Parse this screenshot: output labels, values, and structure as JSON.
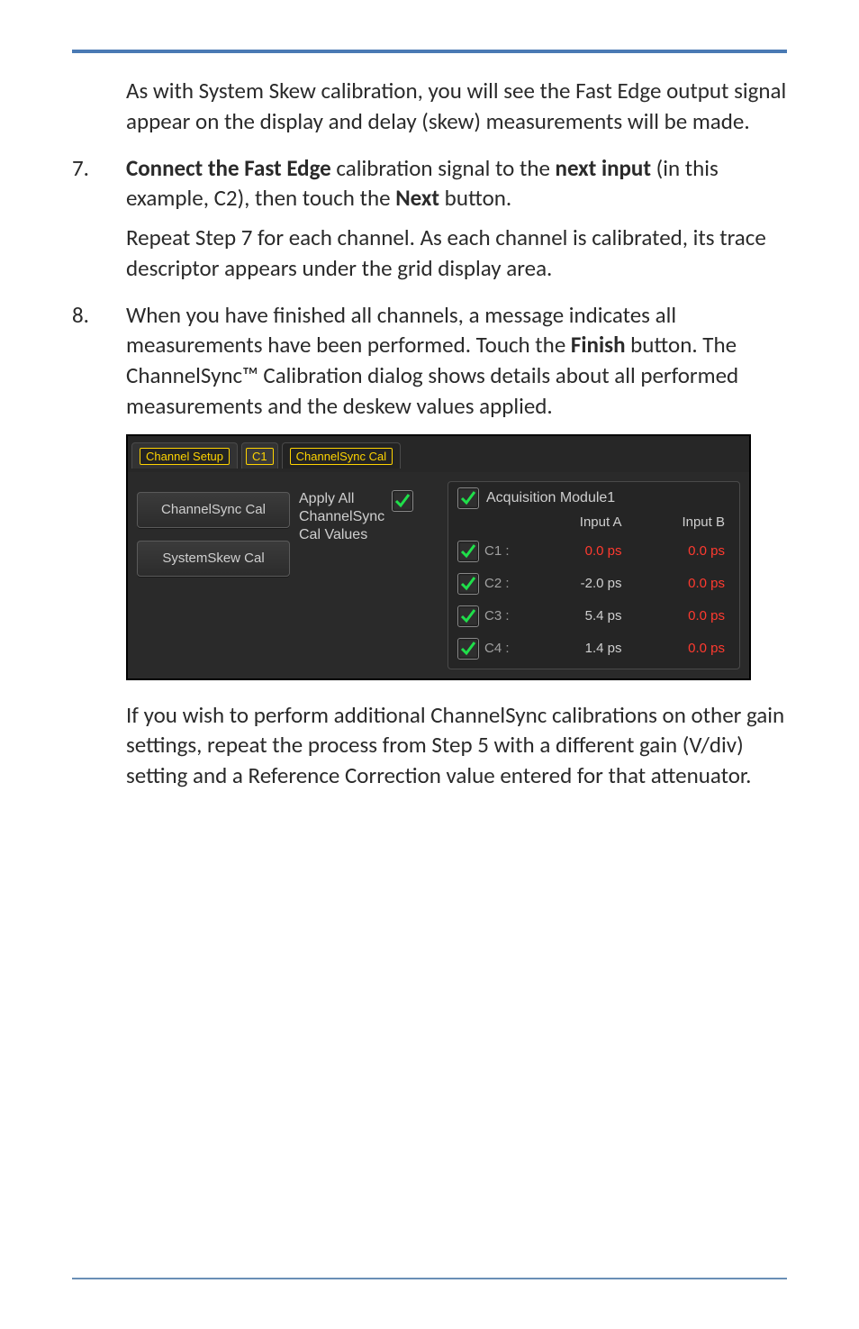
{
  "para_intro": "As with System Skew calibration, you will see the Fast Edge output signal appear on the display and delay (skew) measurements will be made.",
  "step7": {
    "num": "7.",
    "line1_pre": "Connect the Fast Edge",
    "line1_mid": " calibration signal to the ",
    "line1_bold2": "next input",
    "line1_post": " (in this example, C2), then touch the ",
    "line1_bold3": "Next",
    "line1_end": " button.",
    "sub": "Repeat Step 7 for each channel. As each channel is calibrated, its trace descriptor appears under the grid display area."
  },
  "step8": {
    "num": "8.",
    "text_pre": "When you have finished all channels, a message indicates all measurements have been performed. Touch the ",
    "text_bold": "Finish",
    "text_post": " button. The ChannelSync™ Calibration dialog shows details about all performed measurements and the deskew values applied."
  },
  "para_after": "If you wish to perform additional ChannelSync calibrations on other gain settings, repeat the process from Step 5 with a different gain (V/div) setting and a Reference Correction value entered for that attenuator.",
  "dialog": {
    "tabs": {
      "channel_setup": "Channel Setup",
      "c1": "C1",
      "channelsync_cal": "ChannelSync Cal"
    },
    "left_buttons": [
      "ChannelSync Cal",
      "SystemSkew Cal"
    ],
    "apply_label": "Apply All\nChannelSync\nCal Values",
    "apply_checked": true,
    "module_checked": true,
    "module_title": "Acquisition Module1",
    "columns": [
      "Input A",
      "Input B"
    ],
    "check_color": "#1fe04a",
    "rows": [
      {
        "checked": true,
        "ch": "C1 :",
        "a": "0.0 ps",
        "a_red": true,
        "b": "0.0 ps",
        "b_red": true
      },
      {
        "checked": true,
        "ch": "C2 :",
        "a": "-2.0 ps",
        "a_red": false,
        "b": "0.0 ps",
        "b_red": true
      },
      {
        "checked": true,
        "ch": "C3 :",
        "a": "5.4 ps",
        "a_red": false,
        "b": "0.0 ps",
        "b_red": true
      },
      {
        "checked": true,
        "ch": "C4 :",
        "a": "1.4 ps",
        "a_red": false,
        "b": "0.0 ps",
        "b_red": true
      }
    ]
  }
}
